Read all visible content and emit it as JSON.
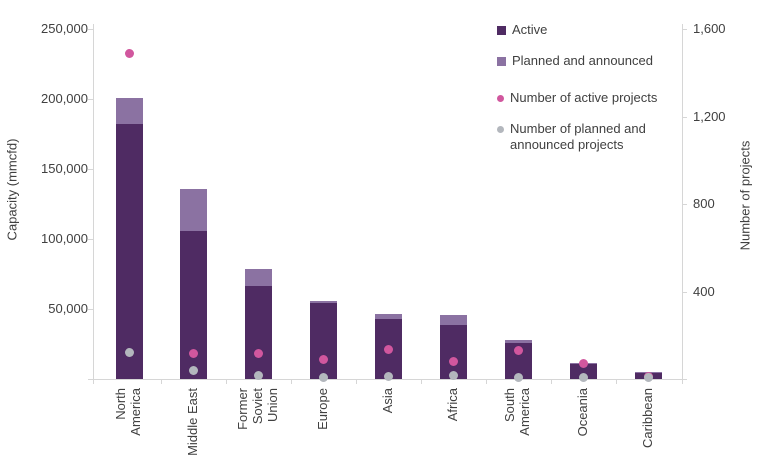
{
  "chart_data": {
    "type": "bar",
    "subtype": "stacked-bar-with-scatter-overlay",
    "title": "",
    "categories": [
      "North\nAmerica",
      "Middle East",
      "Former\nSoviet\nUnion",
      "Europe",
      "Asia",
      "Africa",
      "South\nAmerica",
      "Oceania",
      "Caribbean"
    ],
    "series": [
      {
        "name": "Active",
        "type": "bar",
        "stack": "capacity",
        "axis": "left",
        "color": "#4f2b63",
        "values": [
          182000,
          106000,
          66500,
          54000,
          43000,
          38500,
          25500,
          10500,
          4300
        ]
      },
      {
        "name": "Planned and announced",
        "type": "bar",
        "stack": "capacity",
        "axis": "left",
        "color": "#8b72a2",
        "values": [
          19000,
          29500,
          12000,
          1500,
          3500,
          7000,
          2500,
          1000,
          700
        ]
      },
      {
        "name": "Number of active projects",
        "type": "scatter",
        "axis": "right",
        "color": "#d1579e",
        "values": [
          1490,
          115,
          115,
          90,
          135,
          80,
          130,
          70,
          10
        ]
      },
      {
        "name": "Number of planned and announced projects",
        "type": "scatter",
        "axis": "right",
        "color": "#b3b7bd",
        "values": [
          120,
          40,
          15,
          5,
          10,
          15,
          5,
          5,
          5
        ]
      }
    ],
    "left_axis": {
      "label": "Capacity (mmcfd)",
      "min": 0,
      "max": 250000,
      "tick_values": [
        50000,
        100000,
        150000,
        200000,
        250000
      ],
      "tick_labels": [
        "50,000",
        "100,000",
        "150,000",
        "200,000",
        "250,000"
      ]
    },
    "right_axis": {
      "label": "Number of projects",
      "min": 0,
      "max": 1600,
      "tick_values": [
        400,
        800,
        1200,
        1600
      ],
      "tick_labels": [
        "400",
        "800",
        "1,200",
        "1,600"
      ]
    },
    "legend": {
      "position": "top-right-inside",
      "entries": [
        "Active",
        "Planned and announced",
        "Number of active projects",
        "Number of planned and announced projects"
      ]
    },
    "grid": false,
    "colors": {
      "active_bar": "#4f2b63",
      "planned_bar": "#8b72a2",
      "active_projects_dot": "#d1579e",
      "planned_projects_dot": "#b3b7bd",
      "axis": "#d6d6d6",
      "text": "#404040",
      "background": "#ffffff"
    }
  }
}
